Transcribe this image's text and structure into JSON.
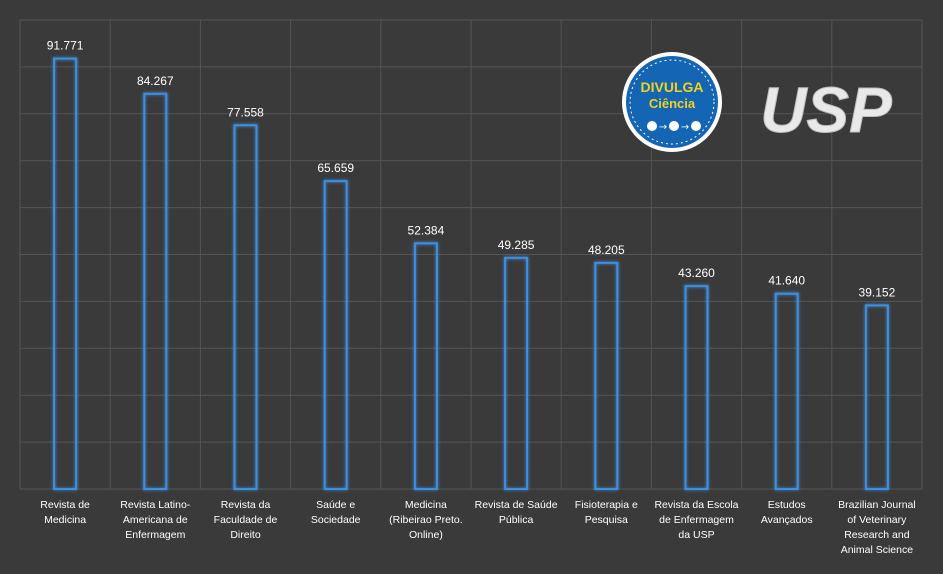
{
  "chart_data": {
    "type": "bar",
    "title": "",
    "xlabel": "",
    "ylabel": "",
    "ylim": [
      0,
      100000
    ],
    "grid": true,
    "categories": [
      [
        "Revista de",
        "Medicina"
      ],
      [
        "Revista Latino-",
        "Americana de",
        "Enfermagem"
      ],
      [
        "Revista da",
        "Faculdade de",
        "Direito"
      ],
      [
        "Saúde e",
        "Sociedade"
      ],
      [
        "Medicina",
        "(Ribeirao Preto.",
        "Online)"
      ],
      [
        "Revista de Saúde",
        "Pública"
      ],
      [
        "Fisioterapia e",
        "Pesquisa"
      ],
      [
        "Revista da Escola",
        "de Enfermagem",
        "da USP"
      ],
      [
        "Estudos",
        "Avançados"
      ],
      [
        "Brazilian Journal",
        "of Veterinary",
        "Research and",
        "Animal Science"
      ]
    ],
    "values": [
      91771,
      84267,
      77558,
      65659,
      52384,
      49285,
      48205,
      43260,
      41640,
      39152
    ],
    "value_labels": [
      "91.771",
      "84.267",
      "77.558",
      "65.659",
      "52.384",
      "49.285",
      "48.205",
      "43.260",
      "41.640",
      "39.152"
    ]
  },
  "logos": {
    "divulga": {
      "line1": "DIVULGA",
      "line2": "Ciência"
    },
    "usp": {
      "text": "USP"
    }
  },
  "colors": {
    "background": "#3a3a3a",
    "grid": "#555555",
    "bar_stroke": "#3d8fe0",
    "bar_glow": "#1f5fa8",
    "text": "#ffffff",
    "divulga_blue": "#1565b5",
    "divulga_yellow": "#f2d21b"
  }
}
